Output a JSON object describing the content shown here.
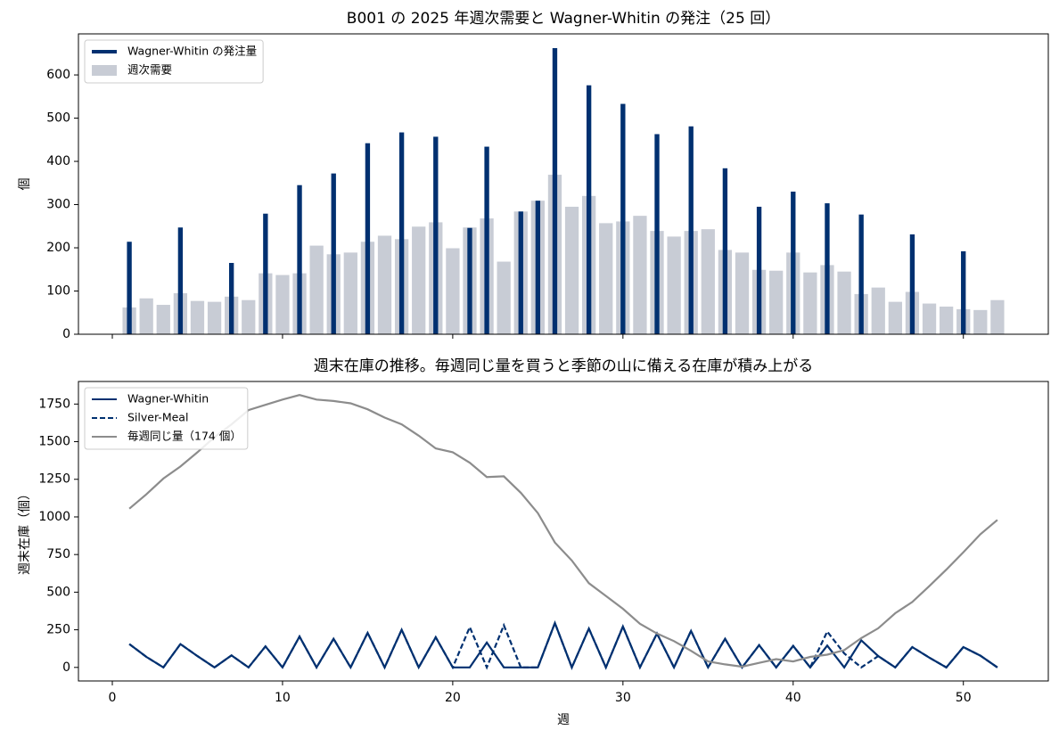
{
  "chart_data": [
    {
      "type": "bar",
      "title": "B001 の 2025 年週次需要と Wagner-Whitin の発注（25 回）",
      "ylabel": "個",
      "xlim": [
        -1.99,
        54.99
      ],
      "ylim": [
        0,
        695
      ],
      "yticks": [
        0,
        100,
        200,
        300,
        400,
        500,
        600
      ],
      "legend": "upper left",
      "series": [
        {
          "name": "Wagner-Whitin の発注量",
          "color": "#003070",
          "x": [
            1,
            4,
            7,
            9,
            11,
            13,
            15,
            17,
            19,
            21,
            22,
            24,
            25,
            26,
            28,
            30,
            32,
            34,
            36,
            38,
            40,
            42,
            44,
            47,
            50
          ],
          "values": [
            214,
            247,
            165,
            279,
            345,
            372,
            442,
            467,
            457,
            246,
            434,
            284,
            309,
            662,
            576,
            533,
            463,
            481,
            384,
            295,
            330,
            303,
            277,
            231,
            192
          ]
        },
        {
          "name": "週次需要",
          "color": "#c8ccd5",
          "x": [
            1,
            2,
            3,
            4,
            5,
            6,
            7,
            8,
            9,
            10,
            11,
            12,
            13,
            14,
            15,
            16,
            17,
            18,
            19,
            20,
            21,
            22,
            23,
            24,
            25,
            26,
            27,
            28,
            29,
            30,
            31,
            32,
            33,
            34,
            35,
            36,
            37,
            38,
            39,
            40,
            41,
            42,
            43,
            44,
            45,
            46,
            47,
            48,
            49,
            50,
            51,
            52
          ],
          "values": [
            62,
            83,
            68,
            95,
            77,
            75,
            87,
            79,
            141,
            137,
            141,
            205,
            185,
            189,
            214,
            228,
            220,
            249,
            259,
            199,
            247,
            268,
            168,
            284,
            309,
            369,
            295,
            320,
            257,
            261,
            274,
            239,
            226,
            239,
            243,
            195,
            189,
            149,
            147,
            189,
            143,
            160,
            145,
            93,
            108,
            75,
            98,
            71,
            64,
            58,
            56,
            79
          ]
        }
      ]
    },
    {
      "type": "line",
      "title": "週末在庫の推移。毎週同じ量を買うと季節の山に備える在庫が積み上がる",
      "xlabel": "週",
      "ylabel": "週末在庫（個）",
      "xlim": [
        -1.99,
        54.99
      ],
      "ylim": [
        -90,
        1900
      ],
      "xticks": [
        0,
        10,
        20,
        30,
        40,
        50
      ],
      "yticks": [
        0,
        250,
        500,
        750,
        1000,
        1250,
        1500,
        1750
      ],
      "legend": "upper left",
      "x": [
        1,
        2,
        3,
        4,
        5,
        6,
        7,
        8,
        9,
        10,
        11,
        12,
        13,
        14,
        15,
        16,
        17,
        18,
        19,
        20,
        21,
        22,
        23,
        24,
        25,
        26,
        27,
        28,
        29,
        30,
        31,
        32,
        33,
        34,
        35,
        36,
        37,
        38,
        39,
        40,
        41,
        42,
        43,
        44,
        45,
        46,
        47,
        48,
        49,
        50,
        51,
        52
      ],
      "series": [
        {
          "name": "Wagner-Whitin",
          "color": "#003070",
          "linestyle": "solid",
          "values": [
            155,
            70,
            0,
            155,
            75,
            0,
            80,
            0,
            140,
            0,
            205,
            0,
            190,
            0,
            230,
            0,
            250,
            0,
            200,
            0,
            0,
            165,
            0,
            0,
            0,
            295,
            0,
            258,
            0,
            272,
            0,
            225,
            0,
            243,
            0,
            190,
            0,
            148,
            0,
            143,
            0,
            145,
            0,
            180,
            75,
            0,
            135,
            65,
            0,
            135,
            78,
            0
          ]
        },
        {
          "name": "Silver-Meal",
          "color": "#003070",
          "linestyle": "dashed",
          "values": [
            155,
            70,
            0,
            155,
            75,
            0,
            80,
            0,
            140,
            0,
            205,
            0,
            190,
            0,
            230,
            0,
            250,
            0,
            200,
            0,
            268,
            0,
            280,
            0,
            0,
            295,
            0,
            258,
            0,
            272,
            0,
            225,
            0,
            243,
            0,
            190,
            0,
            148,
            0,
            143,
            0,
            238,
            93,
            0,
            75,
            0,
            135,
            65,
            0,
            135,
            78,
            0
          ]
        },
        {
          "name": "毎週同じ量（174 個）",
          "color": "#8c8c8c",
          "linestyle": "solid",
          "values": [
            1055,
            1150,
            1255,
            1335,
            1430,
            1530,
            1615,
            1710,
            1745,
            1780,
            1810,
            1780,
            1770,
            1755,
            1715,
            1660,
            1615,
            1540,
            1455,
            1430,
            1360,
            1265,
            1270,
            1160,
            1025,
            830,
            710,
            560,
            475,
            390,
            290,
            225,
            175,
            110,
            40,
            20,
            5,
            30,
            55,
            40,
            70,
            85,
            115,
            195,
            260,
            360,
            435,
            540,
            650,
            765,
            885,
            980
          ]
        }
      ]
    }
  ]
}
